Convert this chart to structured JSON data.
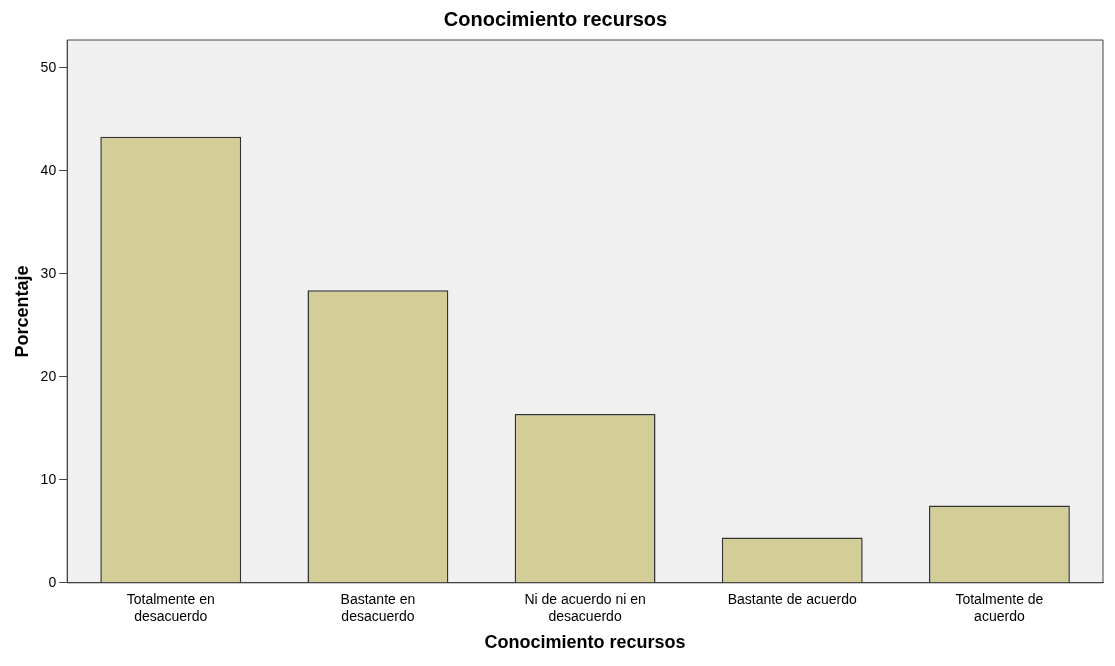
{
  "chart_data": {
    "type": "bar",
    "title": "Conocimiento recursos",
    "xlabel": "Conocimiento recursos",
    "ylabel": "Porcentaje",
    "categories": [
      "Totalmente en desacuerdo",
      "Bastante en desacuerdo",
      "Ni de acuerdo ni en desacuerdo",
      "Bastante de acuerdo",
      "Totalmente de acuerdo"
    ],
    "values": [
      43.3,
      28.4,
      16.4,
      4.4,
      7.5
    ],
    "color": "#d3ce97",
    "ylim": [
      0,
      52.7
    ],
    "yticks": [
      0,
      10,
      20,
      30,
      40,
      50
    ],
    "grid": false,
    "legend": false
  }
}
